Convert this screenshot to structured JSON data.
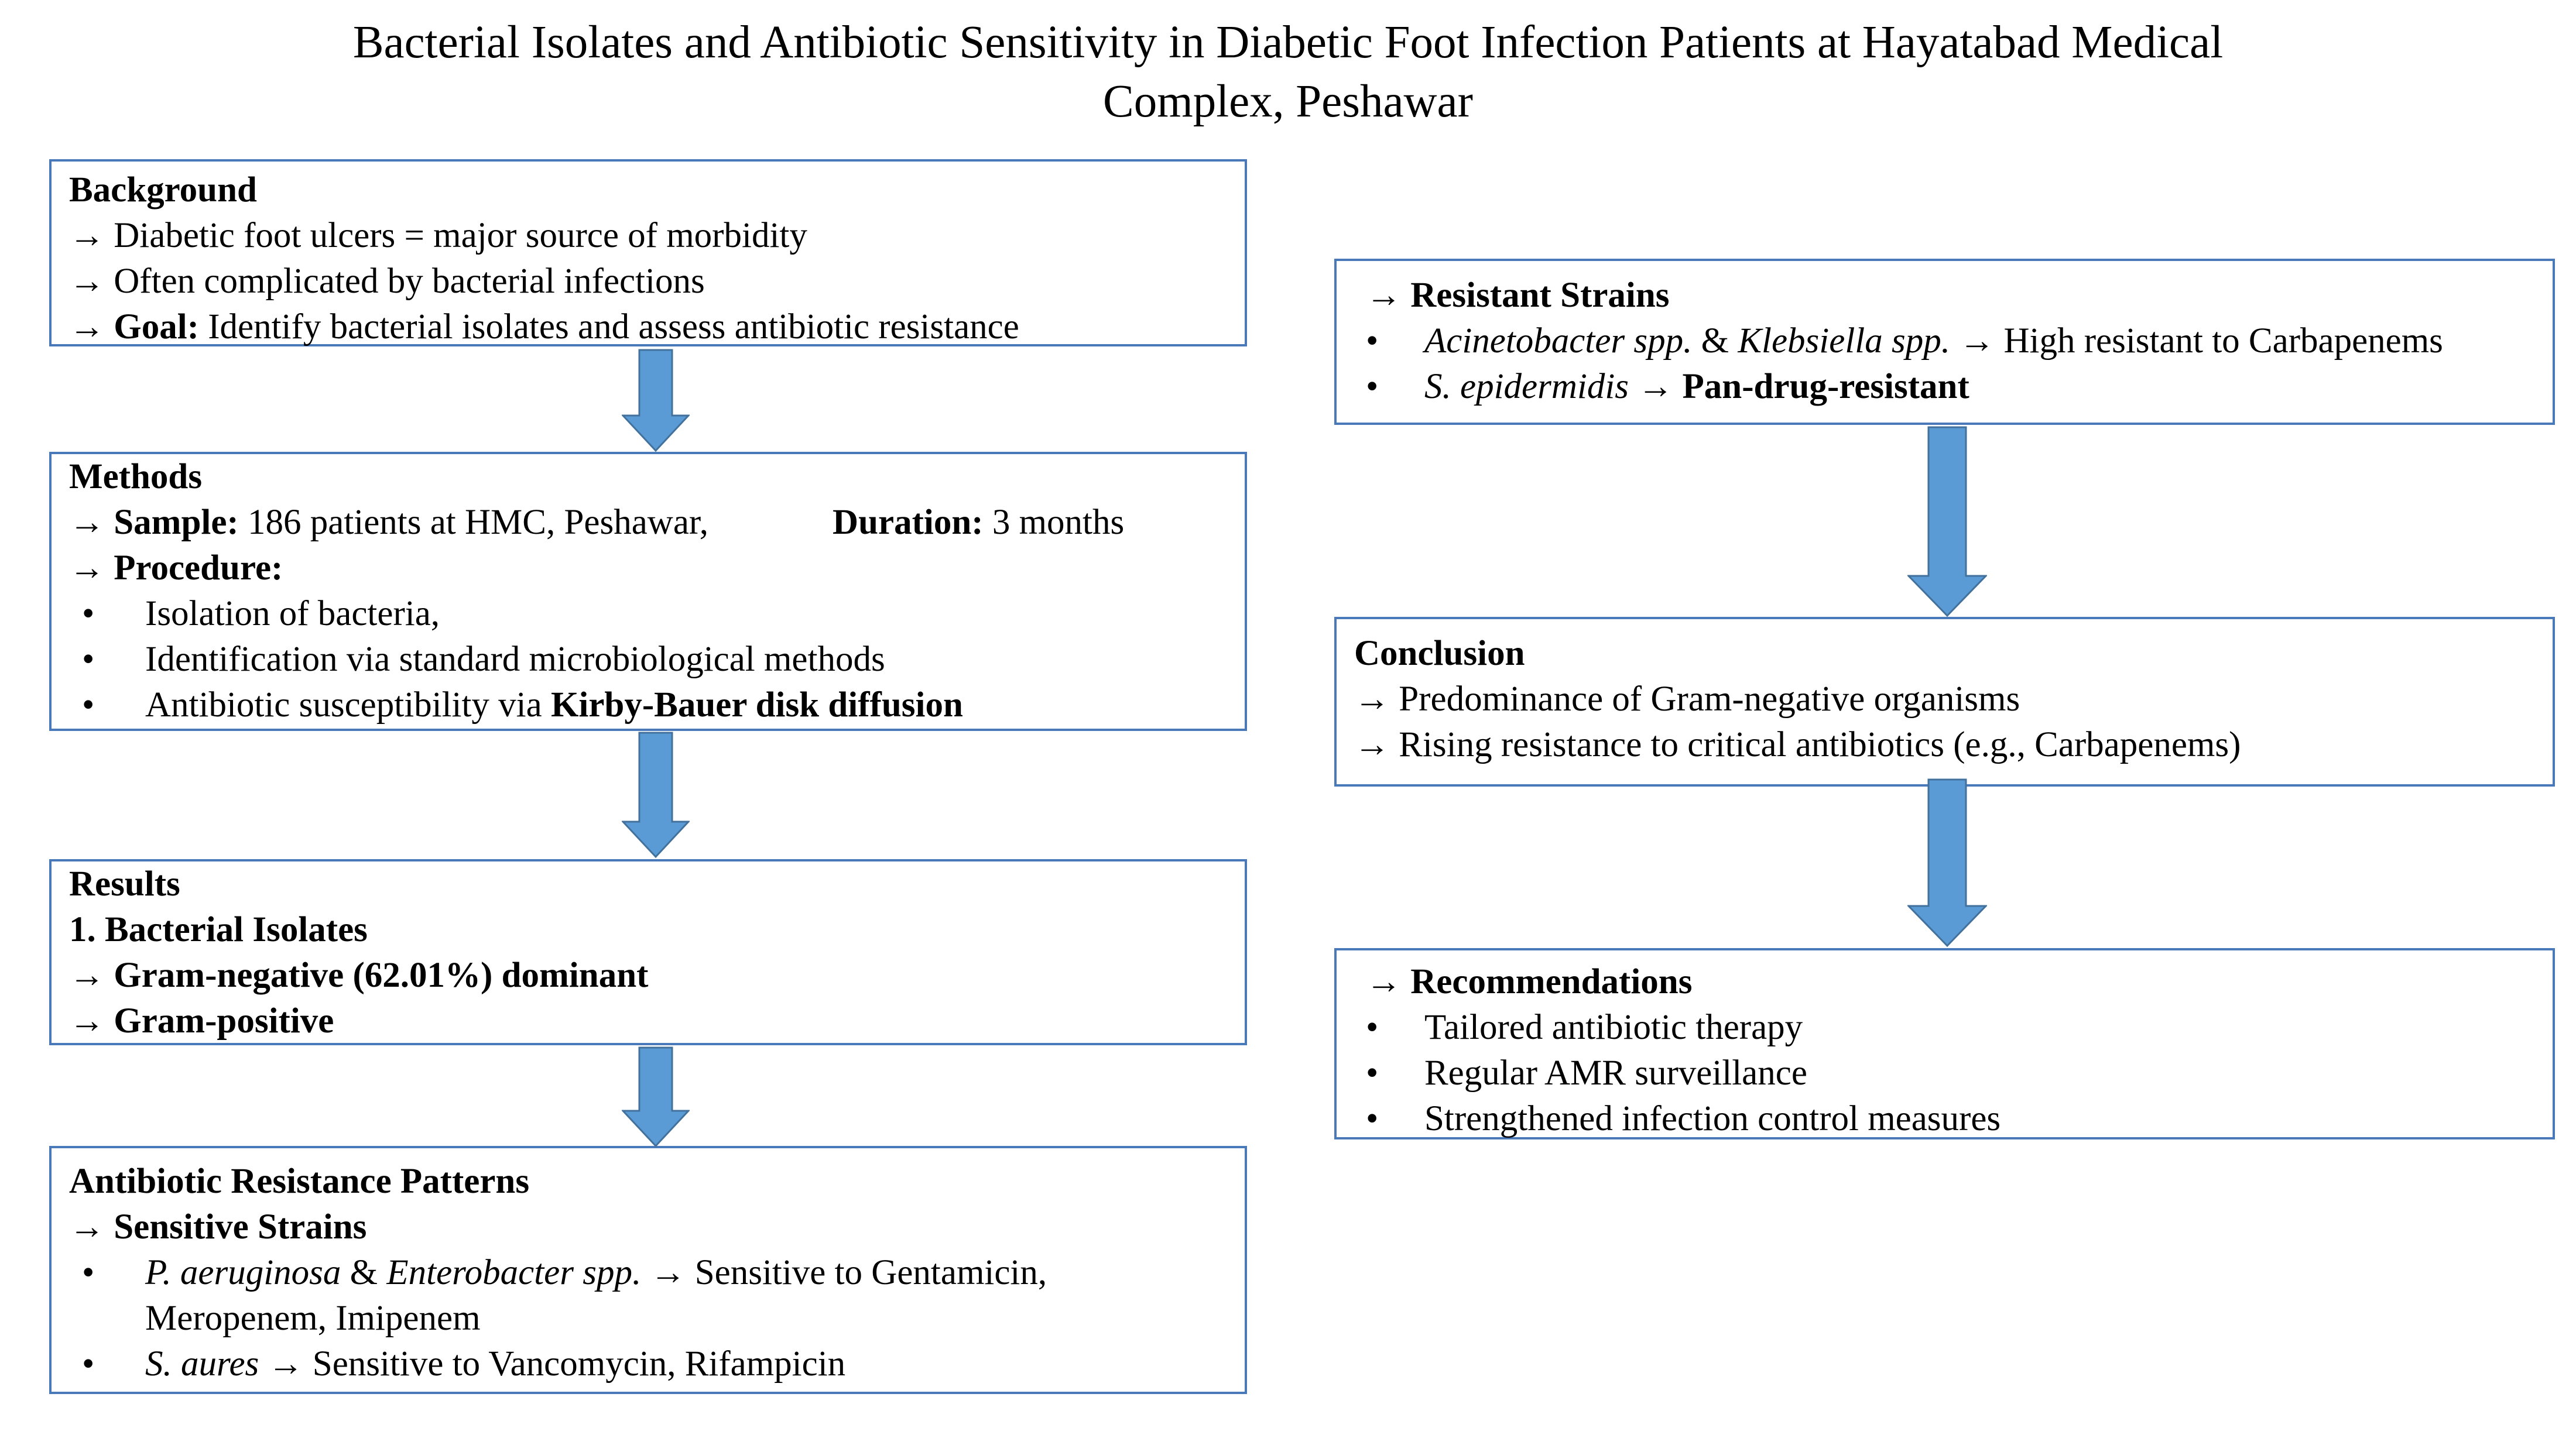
{
  "title": {
    "line1": "Bacterial Isolates and Antibiotic Sensitivity in Diabetic Foot Infection Patients at Hayatabad Medical",
    "line2": "Complex, Peshawar"
  },
  "colors": {
    "border": "#4a79b9",
    "arrow_fill": "#5b9bd5",
    "arrow_stroke": "#41719c"
  },
  "arrow_symbol": "→",
  "bullet_symbol": "•",
  "background": {
    "heading": "Background",
    "item1": " Diabetic foot ulcers = major source of morbidity",
    "item2": " Often complicated by bacterial infections",
    "goal_label": " Goal:",
    "goal_text": " Identify bacterial isolates and assess antibiotic resistance"
  },
  "methods": {
    "heading": "Methods",
    "sample_label": " Sample:",
    "sample_text": " 186 patients at HMC, Peshawar,",
    "duration_label": "Duration:",
    "duration_text": " 3 months",
    "procedure_label": " Procedure:",
    "steps": [
      "Isolation of bacteria,",
      "Identification via standard microbiological methods"
    ],
    "step3_prefix": "Antibiotic susceptibility via ",
    "step3_bold": "Kirby-Bauer disk diffusion"
  },
  "results": {
    "heading": "Results",
    "subheading": "1. Bacterial Isolates",
    "item1": " Gram-negative (62.01%) dominant",
    "item2": " Gram-positive"
  },
  "patterns": {
    "heading": "Antibiotic Resistance Patterns",
    "sensitive_heading": " Sensitive Strains",
    "p1_org1": "P. aeruginosa",
    "p1_amp": " & ",
    "p1_org2": "Enterobacter spp.",
    "p1_text": " → Sensitive to Gentamicin,",
    "p1_text2": "Meropenem, Imipenem",
    "p2_org": "S. aures",
    "p2_text": " → Sensitive to Vancomycin, Rifampicin"
  },
  "resistant": {
    "heading": " Resistant Strains",
    "r1_org1": "Acinetobacter spp.",
    "r1_amp": " & ",
    "r1_org2": "Klebsiella spp.",
    "r1_text": " → High resistant to Carbapenems",
    "r2_org": "S. epidermidis",
    "r2_arrow": " → ",
    "r2_text": "Pan-drug-resistant"
  },
  "conclusion": {
    "heading": "Conclusion",
    "item1": " Predominance of Gram-negative organisms",
    "item2": " Rising resistance to critical antibiotics (e.g., Carbapenems)"
  },
  "recommendations": {
    "heading": " Recommendations",
    "items": [
      "Tailored antibiotic therapy",
      "Regular AMR surveillance",
      "Strengthened infection control measures"
    ]
  }
}
